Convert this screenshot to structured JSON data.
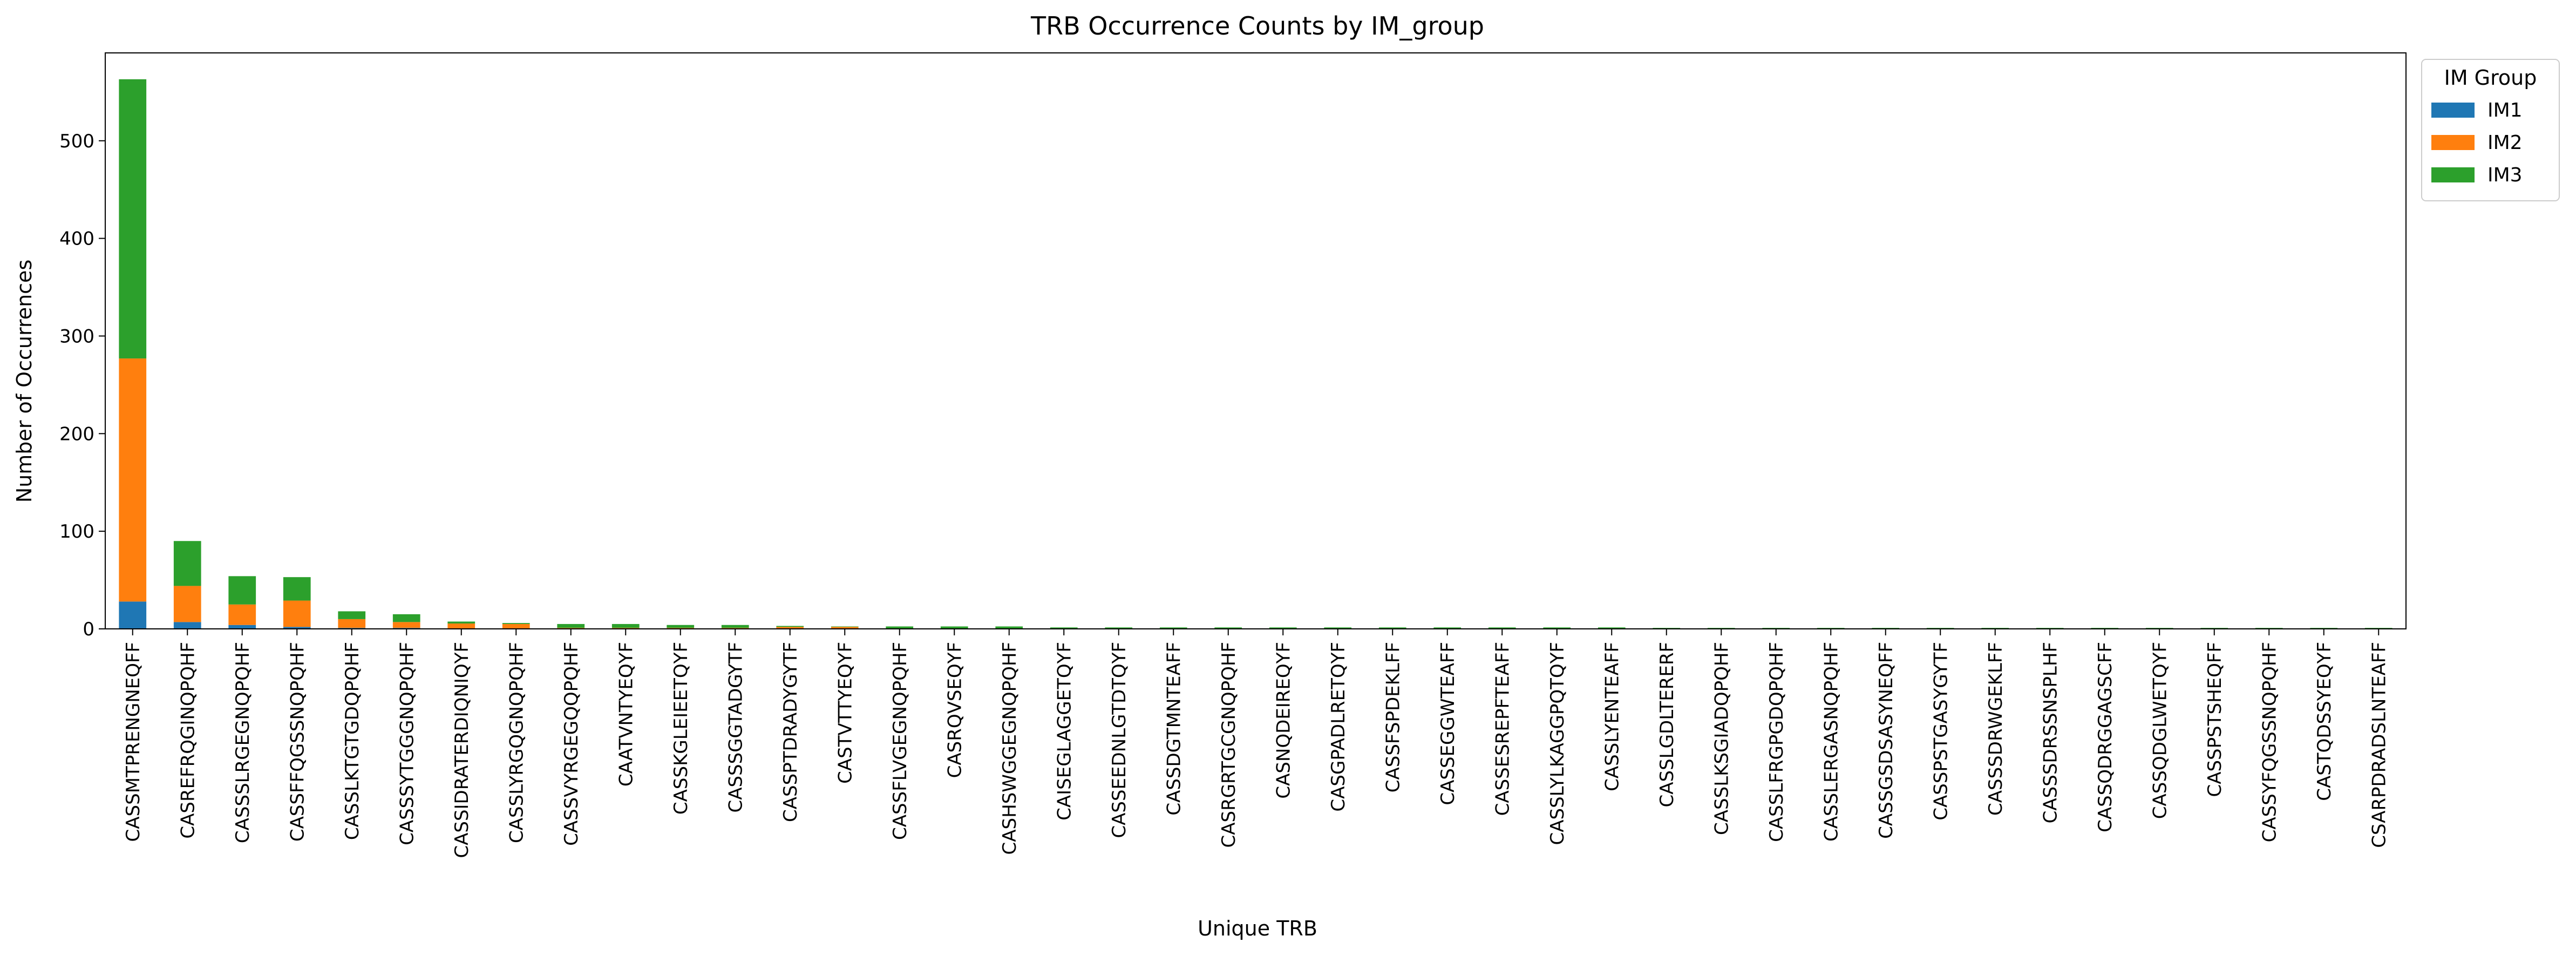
{
  "chart_data": {
    "type": "bar",
    "stacked": true,
    "title": "TRB Occurrence Counts by IM_group",
    "xlabel": "Unique TRB",
    "ylabel": "Number of Occurrences",
    "ylim": [
      0,
      590
    ],
    "yticks": [
      0,
      100,
      200,
      300,
      400,
      500
    ],
    "grid": false,
    "legend": {
      "title": "IM Group",
      "placement": "outside-top-right"
    },
    "categories": [
      "CASSMTPRENGNEQFF",
      "CASREFRQGINQPQHF",
      "CASSSLRGEGNQPQHF",
      "CASSFFQGSSNQPQHF",
      "CASSLKTGTGDQPQHF",
      "CASSSYTGGGNQPQHF",
      "CASSIDRATERDIQNIQYF",
      "CASSLYRGQGNQPQHF",
      "CASSVYRGEGQQPQHF",
      "CAATVNTYEQYF",
      "CASSKGLEIEETQYF",
      "CASSSGGTADGYTF",
      "CASSPTDRADYGYTF",
      "CASTVTTYEQYF",
      "CASSFLVGEGNQPQHF",
      "CASRQVSEQYF",
      "CASHSWGGEGNQPQHF",
      "CAISEGLAGGETQYF",
      "CASSEEDNLGTDTQYF",
      "CASSDGTMNTEAFF",
      "CASRGRTGCGNQPQHF",
      "CASNQDEIREQYF",
      "CASGPADLRETQYF",
      "CASSFSPDEKLFF",
      "CASSEGGWTEAFF",
      "CASSESREPFTEAFF",
      "CASSLYLKAGGPQTQYF",
      "CASSLYENTEAFF",
      "CASSLGDLTERERF",
      "CASSLKSGIADQPQHF",
      "CASSLFRGPGDQPQHF",
      "CASSLERGASNQPQHF",
      "CASSGSDSASYNEQFF",
      "CASSPSTGASYGYTF",
      "CASSSDRWGEKLFF",
      "CASSSDRSSNSPLHF",
      "CASSQDRGGAGSCFF",
      "CASSQDGLWETQYF",
      "CASSPSTSHEQFF",
      "CASSYFQGSSNQPQHF",
      "CASTQDSSYEQYF",
      "CSARPDRADSLNTEAFF"
    ],
    "series": [
      {
        "name": "IM1",
        "color": "#1f77b4",
        "values": [
          28,
          7,
          4,
          2,
          1,
          1,
          0.5,
          0,
          0,
          0,
          0,
          0,
          0,
          0,
          0,
          0,
          0,
          0,
          0,
          0,
          0,
          0,
          0,
          0,
          0,
          0,
          0,
          0,
          0,
          0,
          0,
          0,
          0,
          0,
          0,
          0,
          0,
          0,
          0,
          0,
          0,
          0
        ]
      },
      {
        "name": "IM2",
        "color": "#ff7f0e",
        "values": [
          249,
          37,
          21,
          27,
          9,
          6,
          5,
          5,
          1,
          1,
          1,
          1,
          2,
          2,
          0.5,
          0.5,
          0.5,
          0.5,
          0.5,
          0.5,
          0.5,
          0.5,
          0.5,
          0.5,
          0.5,
          0.5,
          0.5,
          0.5,
          0,
          0,
          0,
          0,
          0,
          0,
          0,
          0,
          0,
          0,
          0,
          0,
          0,
          0
        ]
      },
      {
        "name": "IM3",
        "color": "#2ca02c",
        "values": [
          286,
          46,
          29,
          24,
          8,
          8,
          2,
          1,
          4,
          4,
          3,
          3,
          1,
          0.5,
          2,
          2,
          2,
          1,
          1,
          1,
          1,
          1,
          1,
          1,
          1,
          1,
          1,
          1,
          1,
          1,
          1,
          1,
          1,
          1,
          1,
          1,
          1,
          1,
          1,
          1,
          1,
          1
        ]
      }
    ]
  }
}
